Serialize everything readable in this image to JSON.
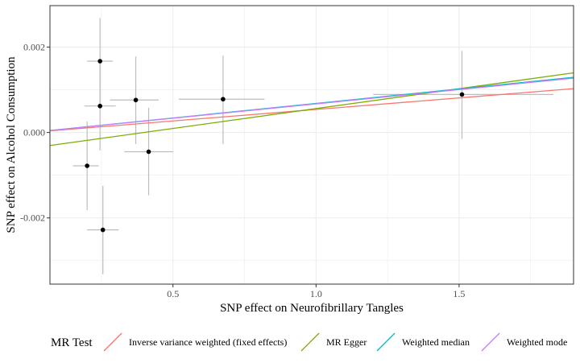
{
  "chart_data": {
    "type": "scatter",
    "title": "",
    "xlabel": "SNP effect on Neurofibrillary Tangles",
    "ylabel": "SNP effect on Alcohol Consumption",
    "xlim": [
      0.07,
      1.9
    ],
    "ylim": [
      -0.00355,
      0.00297
    ],
    "x_ticks": [
      0.5,
      1.0,
      1.5
    ],
    "x_tick_labels": [
      "0.5",
      "1.0",
      "1.5"
    ],
    "y_ticks": [
      -0.002,
      0.0,
      0.002
    ],
    "y_tick_labels": [
      "-0.002",
      "0.000",
      "0.002"
    ],
    "grid": true,
    "points": [
      {
        "x": 0.245,
        "y": 0.00167,
        "x_lo": 0.2,
        "x_hi": 0.29,
        "y_lo": 0.00067,
        "y_hi": 0.00268
      },
      {
        "x": 0.245,
        "y": 0.00062,
        "x_lo": 0.19,
        "x_hi": 0.3,
        "y_lo": -0.00042,
        "y_hi": 0.00167
      },
      {
        "x": 0.37,
        "y": 0.00076,
        "x_lo": 0.28,
        "x_hi": 0.45,
        "y_lo": -0.00027,
        "y_hi": 0.00178
      },
      {
        "x": 0.675,
        "y": 0.00078,
        "x_lo": 0.52,
        "x_hi": 0.82,
        "y_lo": -0.00027,
        "y_hi": 0.0018
      },
      {
        "x": 1.51,
        "y": 0.00089,
        "x_lo": 1.2,
        "x_hi": 1.83,
        "y_lo": -0.00015,
        "y_hi": 0.00191
      },
      {
        "x": 0.415,
        "y": -0.00045,
        "x_lo": 0.33,
        "x_hi": 0.5,
        "y_lo": -0.00147,
        "y_hi": 0.00058
      },
      {
        "x": 0.2,
        "y": -0.00078,
        "x_lo": 0.15,
        "x_hi": 0.24,
        "y_lo": -0.00182,
        "y_hi": 0.00026
      },
      {
        "x": 0.255,
        "y": -0.00228,
        "x_lo": 0.2,
        "x_hi": 0.31,
        "y_lo": -0.00332,
        "y_hi": -0.00125
      }
    ],
    "series": [
      {
        "name": "Inverse variance weighted (fixed effects)",
        "color": "#F8766D",
        "intercept": 0.0,
        "slope": 0.00054
      },
      {
        "name": "MR Egger",
        "color": "#7CAE00",
        "intercept": -0.00037,
        "slope": 0.00093
      },
      {
        "name": "Weighted median",
        "color": "#00BFC4",
        "intercept": 0.0,
        "slope": 0.00068
      },
      {
        "name": "Weighted mode",
        "color": "#C77CFF",
        "intercept": 0.0,
        "slope": 0.00067
      }
    ],
    "legend": {
      "position": "bottom",
      "title": "MR Test"
    }
  }
}
